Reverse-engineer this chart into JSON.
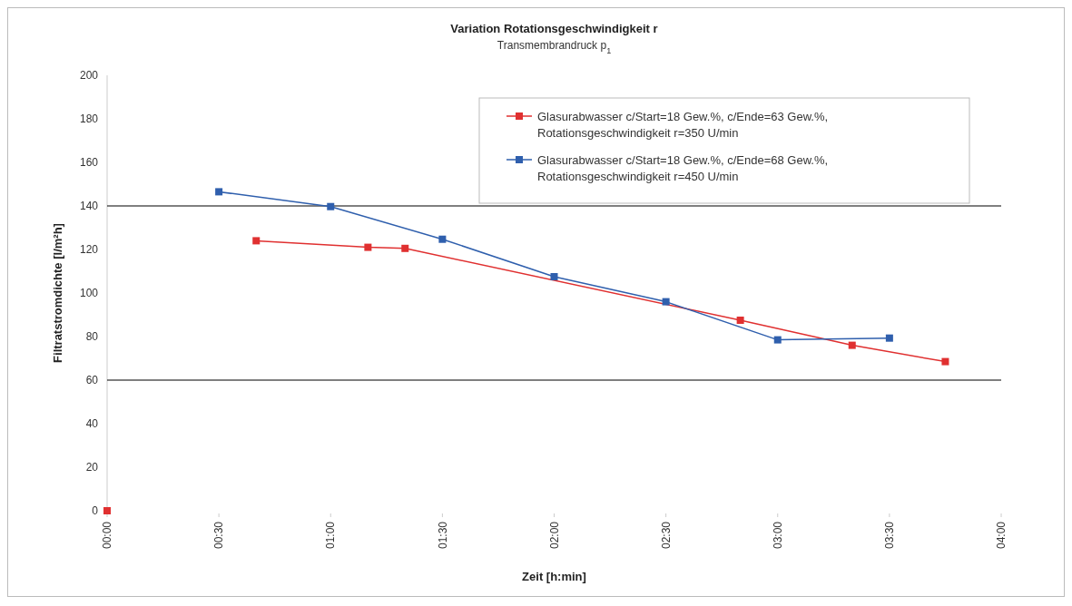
{
  "chart_data": {
    "type": "line",
    "title": "Variation Rotationsgeschwindigkeit r",
    "subtitle": "Transmembrandruck p$_{1}$",
    "xlabel": "Zeit [h:min]",
    "ylabel": "Filtratstromdichte [l/m²h]",
    "xlim": [
      0,
      4
    ],
    "xticks": [
      {
        "value": 0,
        "label": "00:00"
      },
      {
        "value": 0.5,
        "label": "00:30"
      },
      {
        "value": 1,
        "label": "01:00"
      },
      {
        "value": 1.5,
        "label": "01:30"
      },
      {
        "value": 2,
        "label": "02:00"
      },
      {
        "value": 2.5,
        "label": "02:30"
      },
      {
        "value": 3,
        "label": "03:00"
      },
      {
        "value": 3.5,
        "label": "03:30"
      },
      {
        "value": 4,
        "label": "04:00"
      }
    ],
    "ylim": [
      0,
      200
    ],
    "yticks": [
      0,
      20,
      40,
      60,
      80,
      100,
      120,
      140,
      160,
      180,
      200
    ],
    "marker": "square",
    "legend": "top right",
    "ref_lines": [
      {
        "axis": "y",
        "value": 140,
        "color": "#000000"
      },
      {
        "axis": "y",
        "value": 60,
        "color": "#000000"
      }
    ],
    "series": [
      {
        "name": "Glasurabwasser c/Start=18 Gew.%, c/Ende=63 Gew.%, Rotationsgeschwindigkeit r=350 U/min",
        "color": "#e03030",
        "x": [
          0.667,
          1.167,
          1.333,
          2.833,
          3.333,
          3.75
        ],
        "values": [
          124,
          121,
          120.5,
          87.5,
          76,
          68.5
        ]
      },
      {
        "name": "Glasurabwasser c/Start=18 Gew.%, c/Ende=68 Gew.%, Rotationsgeschwindigkeit r=450 U/min",
        "color": "#2f5fad",
        "x": [
          0.5,
          1,
          1.5,
          2,
          2.5,
          3,
          3.5
        ],
        "values": [
          146.5,
          139.7,
          124.7,
          107.5,
          96,
          78.5,
          79.3
        ]
      },
      {
        "type": "scatter",
        "color": "#e03030",
        "x": [
          0
        ],
        "values": [
          0
        ]
      }
    ]
  }
}
